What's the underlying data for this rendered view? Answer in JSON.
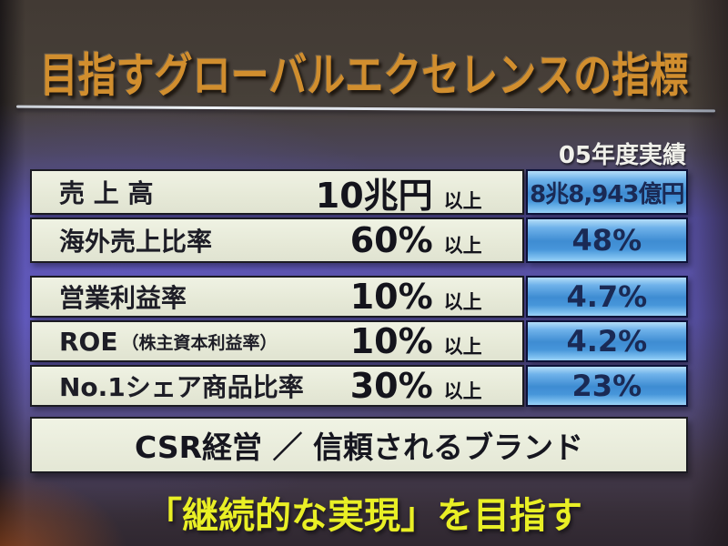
{
  "slide": {
    "title": "目指すグローバルエクセレンスの指標",
    "column_header": "05年度実績",
    "tables": [
      {
        "rows": [
          {
            "label": "売 上 高",
            "note": "",
            "target": "10兆円",
            "suffix": "以上",
            "actual": "8兆8,943億円"
          },
          {
            "label": "海外売上比率",
            "note": "",
            "target": "60%",
            "suffix": "以上",
            "actual": "48%"
          }
        ]
      },
      {
        "rows": [
          {
            "label": "営業利益率",
            "note": "",
            "target": "10%",
            "suffix": "以上",
            "actual": "4.7%"
          },
          {
            "label": "ROE",
            "note": "（株主資本利益率）",
            "target": "10%",
            "suffix": "以上",
            "actual": "4.2%"
          },
          {
            "label": "No.1シェア商品比率",
            "note": "",
            "target": "30%",
            "suffix": "以上",
            "actual": "23%"
          }
        ]
      }
    ],
    "banner": "CSR経営 ／ 信頼されるブランド",
    "footer": "「継続的な実現」を目指す",
    "colors": {
      "title_orange": "#d18e2e",
      "footer_yellow": "#e9ef25",
      "actual_box_blue": "#3e8cd2",
      "metric_cell_cream": "#e9ecdb",
      "slide_background_purple": "#5a53a8",
      "photo_background_brown": "#473f39"
    }
  }
}
